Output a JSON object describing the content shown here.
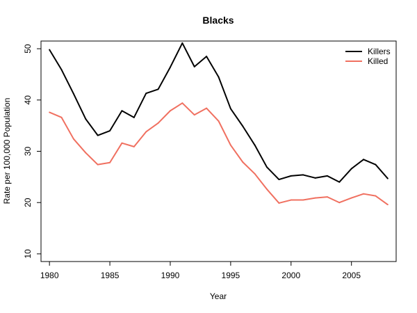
{
  "chart_data": {
    "type": "line",
    "title": "Blacks",
    "xlabel": "Year",
    "ylabel": "Rate per 100,000 Population",
    "xlim": [
      1979.3,
      2008.7
    ],
    "ylim": [
      8.5,
      51.5
    ],
    "xticks": [
      1980,
      1985,
      1990,
      1995,
      2000,
      2005
    ],
    "yticks": [
      10,
      20,
      30,
      40,
      50
    ],
    "grid": false,
    "legend_position": "top-right",
    "x": [
      1980,
      1981,
      1982,
      1983,
      1984,
      1985,
      1986,
      1987,
      1988,
      1989,
      1990,
      1991,
      1992,
      1993,
      1994,
      1995,
      1996,
      1997,
      1998,
      1999,
      2000,
      2001,
      2002,
      2003,
      2004,
      2005,
      2006,
      2007,
      2008
    ],
    "series": [
      {
        "name": "Killers",
        "color": "#000000",
        "values": [
          49.8,
          45.9,
          41.2,
          36.3,
          33.1,
          34.0,
          37.9,
          36.6,
          41.3,
          42.1,
          46.4,
          51.1,
          46.5,
          48.5,
          44.5,
          38.3,
          34.9,
          31.2,
          26.9,
          24.5,
          25.2,
          25.4,
          24.8,
          25.2,
          24.0,
          26.6,
          28.4,
          27.4,
          24.7
        ]
      },
      {
        "name": "Killed",
        "color": "#f07060",
        "values": [
          37.6,
          36.6,
          32.4,
          29.7,
          27.4,
          27.8,
          31.6,
          30.9,
          33.8,
          35.5,
          37.9,
          39.4,
          37.1,
          38.4,
          35.9,
          31.2,
          27.9,
          25.6,
          22.6,
          19.9,
          20.5,
          20.5,
          20.9,
          21.1,
          20.0,
          20.9,
          21.7,
          21.3,
          19.6
        ]
      }
    ]
  }
}
